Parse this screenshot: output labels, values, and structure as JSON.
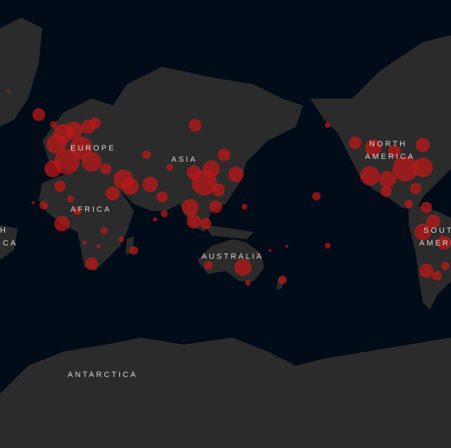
{
  "map": {
    "colors": {
      "ocean": "#010c18",
      "land": "#2b2b2b",
      "bubble": "#c01818",
      "label": "#d9d9d9"
    },
    "labels": {
      "europe": "EUROPE",
      "asia": "ASIA",
      "africa": "AFRICA",
      "north_america_1": "NORTH",
      "north_america_2": "AMERICA",
      "south_america_1": "SOUTH",
      "south_america_2": "AMERICA",
      "south_america_wrap_1": "H",
      "south_america_wrap_2": "ICA",
      "australia": "AUSTRALIA",
      "antarctica": "ANTARCTICA"
    }
  }
}
